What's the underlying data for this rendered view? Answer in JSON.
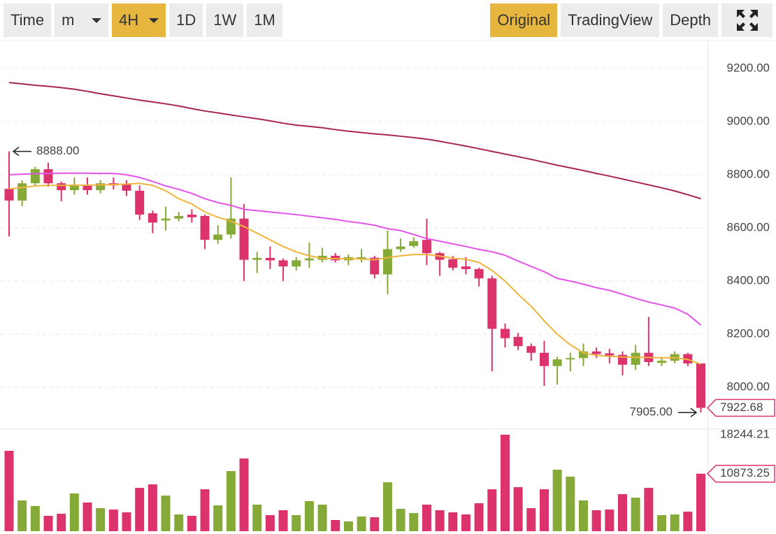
{
  "toolbar": {
    "intervals": [
      {
        "label": "Time"
      },
      {
        "label": "m",
        "dropdown": true
      },
      {
        "label": "4H",
        "dropdown": true,
        "active": true
      },
      {
        "label": "1D"
      },
      {
        "label": "1W"
      },
      {
        "label": "1M"
      }
    ],
    "views": [
      {
        "label": "Original",
        "active": true
      },
      {
        "label": "TradingView"
      },
      {
        "label": "Depth"
      }
    ]
  },
  "chart_data": {
    "type": "candlestick",
    "up_color": "#85aa38",
    "down_color": "#dc336d",
    "open": [
      8747,
      8703,
      8768,
      8821,
      8768,
      8742,
      8763,
      8742,
      8768,
      8765,
      8740,
      8655,
      8628,
      8635,
      8650,
      8645,
      8555,
      8575,
      8635,
      8480,
      8487,
      8478,
      8455,
      8478,
      8480,
      8495,
      8478,
      8485,
      8488,
      8425,
      8520,
      8532,
      8555,
      8505,
      8482,
      8455,
      8445,
      8410,
      8220,
      8190,
      8155,
      8130,
      8080,
      8105,
      8110,
      8135,
      8128,
      8122,
      8085,
      8130,
      8092,
      8100,
      8125,
      8090
    ],
    "high": [
      8888,
      8779,
      8830,
      8845,
      8775,
      8790,
      8790,
      8780,
      8790,
      8780,
      8760,
      8665,
      8680,
      8660,
      8670,
      8650,
      8610,
      8790,
      8690,
      8510,
      8530,
      8485,
      8490,
      8545,
      8525,
      8505,
      8500,
      8520,
      8495,
      8590,
      8560,
      8565,
      8635,
      8510,
      8495,
      8490,
      8450,
      8420,
      8240,
      8205,
      8165,
      8175,
      8115,
      8130,
      8165,
      8150,
      8145,
      8135,
      8160,
      8265,
      8115,
      8135,
      8130,
      8090
    ],
    "low": [
      8568,
      8682,
      8760,
      8755,
      8700,
      8725,
      8725,
      8730,
      8745,
      8720,
      8630,
      8580,
      8590,
      8625,
      8620,
      8520,
      8540,
      8560,
      8400,
      8430,
      8445,
      8400,
      8440,
      8450,
      8470,
      8470,
      8460,
      8470,
      8410,
      8350,
      8510,
      8525,
      8460,
      8420,
      8440,
      8425,
      8380,
      8060,
      8150,
      8140,
      8100,
      8005,
      8010,
      8060,
      8080,
      8110,
      8090,
      8045,
      8065,
      8080,
      8080,
      8090,
      8080,
      7905
    ],
    "close": [
      8703,
      8768,
      8821,
      8768,
      8742,
      8763,
      8742,
      8768,
      8760,
      8740,
      8650,
      8620,
      8635,
      8645,
      8640,
      8555,
      8575,
      8635,
      8480,
      8487,
      8478,
      8455,
      8478,
      8485,
      8495,
      8478,
      8490,
      8490,
      8425,
      8520,
      8530,
      8550,
      8505,
      8480,
      8450,
      8445,
      8410,
      8220,
      8185,
      8155,
      8130,
      8080,
      8105,
      8110,
      8135,
      8125,
      8120,
      8085,
      8130,
      8095,
      8100,
      8125,
      8090,
      7922.68
    ],
    "volume": [
      15200,
      5820,
      4760,
      2910,
      3300,
      7140,
      5420,
      4360,
      4100,
      3570,
      8200,
      8860,
      6740,
      3170,
      2910,
      7930,
      4890,
      11370,
      13750,
      5020,
      3040,
      3970,
      3040,
      5680,
      5020,
      2120,
      1850,
      2780,
      2640,
      9250,
      4230,
      3440,
      5020,
      3970,
      3570,
      3170,
      5290,
      7930,
      18244.21,
      8330,
      4360,
      7930,
      11630,
      10310,
      5820,
      3970,
      4100,
      7010,
      6350,
      8200,
      3040,
      3170,
      3700,
      10873.25
    ],
    "ma_lines": [
      {
        "color": "#efb43c",
        "values": [
          8747,
          8752,
          8758,
          8760,
          8760,
          8760,
          8761,
          8762,
          8763,
          8765,
          8768,
          8760,
          8740,
          8710,
          8690,
          8660,
          8640,
          8625,
          8605,
          8580,
          8555,
          8530,
          8510,
          8495,
          8485,
          8484,
          8484,
          8483,
          8480,
          8488,
          8495,
          8500,
          8500,
          8494,
          8486,
          8482,
          8470,
          8440,
          8400,
          8350,
          8305,
          8250,
          8200,
          8160,
          8130,
          8120,
          8117,
          8114,
          8113,
          8112,
          8111,
          8111,
          8105,
          8087
        ]
      },
      {
        "color": "#e355e8",
        "values": [
          8800,
          8802,
          8804,
          8805,
          8806,
          8806,
          8806,
          8805,
          8805,
          8800,
          8790,
          8775,
          8758,
          8745,
          8730,
          8710,
          8695,
          8685,
          8670,
          8665,
          8660,
          8655,
          8650,
          8644,
          8638,
          8632,
          8624,
          8618,
          8610,
          8597,
          8590,
          8575,
          8560,
          8550,
          8540,
          8530,
          8519,
          8510,
          8497,
          8475,
          8455,
          8435,
          8410,
          8400,
          8388,
          8375,
          8365,
          8350,
          8335,
          8321,
          8310,
          8298,
          8275,
          8234
        ]
      },
      {
        "color": "#a8245a",
        "values": [
          9147,
          9142,
          9137,
          9133,
          9128,
          9122,
          9114,
          9105,
          9097,
          9089,
          9081,
          9074,
          9067,
          9059,
          9049,
          9040,
          9033,
          9025,
          9018,
          9011,
          9003,
          8994,
          8987,
          8982,
          8977,
          8970,
          8964,
          8959,
          8954,
          8950,
          8945,
          8940,
          8934,
          8926,
          8917,
          8908,
          8898,
          8888,
          8878,
          8868,
          8858,
          8847,
          8836,
          8826,
          8816,
          8805,
          8795,
          8784,
          8773,
          8762,
          8751,
          8739,
          8725,
          8710
        ]
      }
    ],
    "ylim": [
      7853,
      9300
    ],
    "yticks": [
      {
        "value": 8000,
        "label": "8000.00"
      },
      {
        "value": 8200,
        "label": "8200.00"
      },
      {
        "value": 8400,
        "label": "8400.00"
      },
      {
        "value": 8600,
        "label": "8600.00"
      },
      {
        "value": 8800,
        "label": "8800.00"
      },
      {
        "value": 9000,
        "label": "9000.00"
      },
      {
        "value": 9200,
        "label": "9200.00"
      }
    ],
    "grid": true,
    "volume_ylim": [
      0,
      18500
    ],
    "high_label": {
      "value": 8888,
      "label": "8888.00"
    },
    "low_label": {
      "value": 7905,
      "label": "7905.00"
    },
    "last_label": {
      "value": 7922.68,
      "label": "7922.68"
    },
    "volume_max_label": {
      "value": 18244.21,
      "label": "18244.21"
    },
    "volume_last_label": {
      "value": 10873.25,
      "label": "10873.25"
    }
  }
}
